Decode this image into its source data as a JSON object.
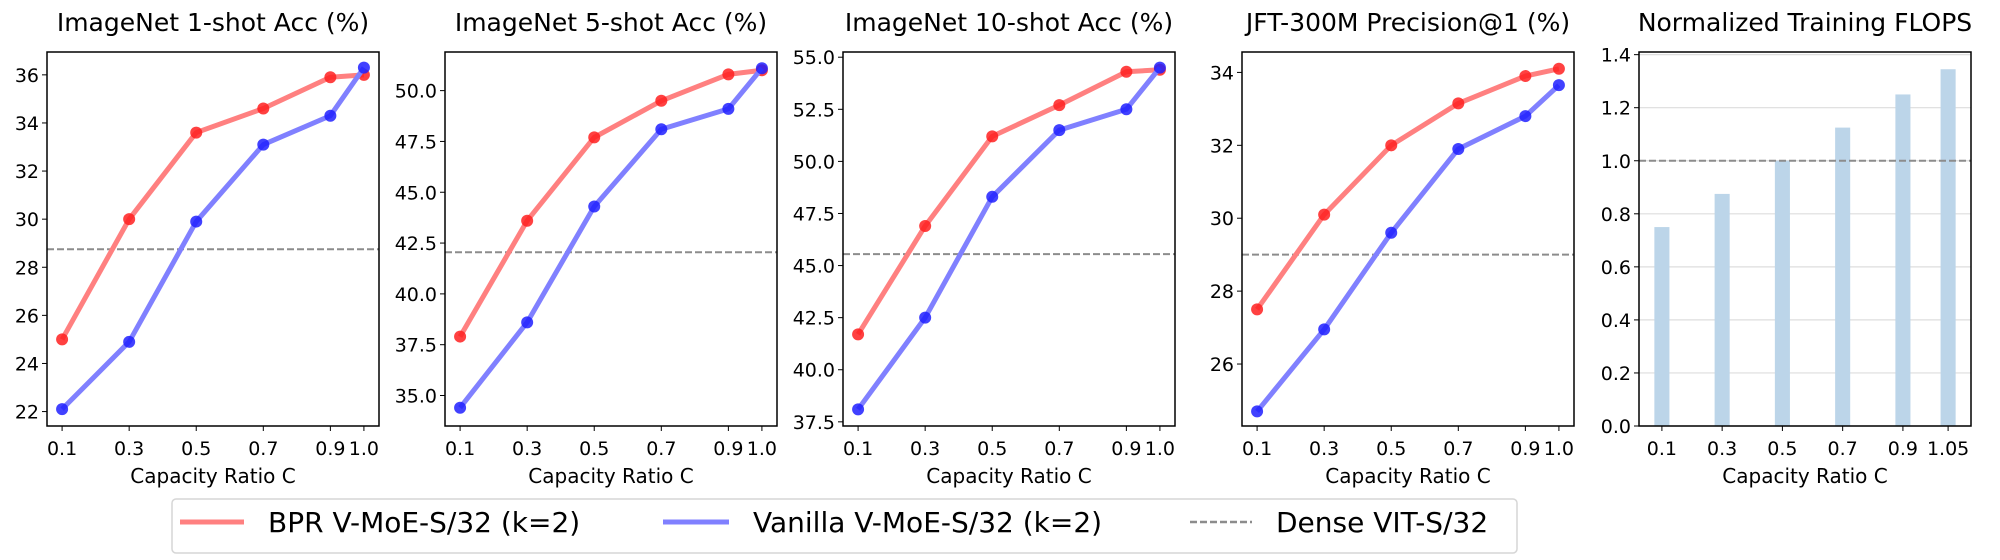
{
  "colors": {
    "bpr_line": "#ff8080",
    "bpr_marker": "#ff2020",
    "vanilla_line": "#8080ff",
    "vanilla_marker": "#2020ff",
    "dense": "#8c8c8c",
    "bar": "#bcd5e9",
    "grid": "#dddddd"
  },
  "legend": {
    "placement": "bottom-center",
    "entries": [
      {
        "label": "BPR V-MoE-S/32 (k=2)",
        "style": "solid",
        "color": "#ff8080"
      },
      {
        "label": "Vanilla V-MoE-S/32 (k=2)",
        "style": "solid",
        "color": "#8080ff"
      },
      {
        "label": "Dense VIT-S/32",
        "style": "dashed",
        "color": "#8c8c8c"
      }
    ]
  },
  "chart_data": [
    {
      "type": "line",
      "title": "ImageNet 1-shot Acc (%)",
      "xlabel": "Capacity Ratio C",
      "x": [
        0.1,
        0.3,
        0.5,
        0.7,
        0.9,
        1.0
      ],
      "xticks": [
        "0.1",
        "0.3",
        "0.5",
        "0.7",
        "0.9",
        "1.0"
      ],
      "ylim": [
        21.4,
        36.95
      ],
      "yticks": [
        "22",
        "24",
        "26",
        "28",
        "30",
        "32",
        "34",
        "36"
      ],
      "series": [
        {
          "name": "BPR V-MoE-S/32 (k=2)",
          "values": [
            25.0,
            30.0,
            33.6,
            34.6,
            35.9,
            36.0
          ]
        },
        {
          "name": "Vanilla V-MoE-S/32 (k=2)",
          "values": [
            22.1,
            24.9,
            29.9,
            33.1,
            34.3,
            36.3
          ]
        }
      ],
      "reference": {
        "name": "Dense VIT-S/32",
        "value": 28.75
      },
      "grid": false
    },
    {
      "type": "line",
      "title": "ImageNet 5-shot Acc (%)",
      "xlabel": "Capacity Ratio C",
      "x": [
        0.1,
        0.3,
        0.5,
        0.7,
        0.9,
        1.0
      ],
      "xticks": [
        "0.1",
        "0.3",
        "0.5",
        "0.7",
        "0.9",
        "1.0"
      ],
      "ylim": [
        33.5,
        51.9
      ],
      "yticks": [
        "35.0",
        "37.5",
        "40.0",
        "42.5",
        "45.0",
        "47.5",
        "50.0"
      ],
      "series": [
        {
          "name": "BPR V-MoE-S/32 (k=2)",
          "values": [
            37.9,
            43.6,
            47.7,
            49.5,
            50.8,
            51.0
          ]
        },
        {
          "name": "Vanilla V-MoE-S/32 (k=2)",
          "values": [
            34.4,
            38.6,
            44.3,
            48.1,
            49.1,
            51.1
          ]
        }
      ],
      "reference": {
        "name": "Dense VIT-S/32",
        "value": 42.05
      },
      "grid": false
    },
    {
      "type": "line",
      "title": "ImageNet 10-shot Acc (%)",
      "xlabel": "Capacity Ratio C",
      "x": [
        0.1,
        0.3,
        0.5,
        0.7,
        0.9,
        1.0
      ],
      "xticks": [
        "0.1",
        "0.3",
        "0.5",
        "0.7",
        "0.9",
        "1.0"
      ],
      "ylim": [
        37.3,
        55.25
      ],
      "yticks": [
        "37.5",
        "40.0",
        "42.5",
        "45.0",
        "47.5",
        "50.0",
        "52.5",
        "55.0"
      ],
      "series": [
        {
          "name": "BPR V-MoE-S/32 (k=2)",
          "values": [
            41.7,
            46.9,
            51.2,
            52.7,
            54.3,
            54.4
          ]
        },
        {
          "name": "Vanilla V-MoE-S/32 (k=2)",
          "values": [
            38.1,
            42.5,
            48.3,
            51.5,
            52.5,
            54.5
          ]
        }
      ],
      "reference": {
        "name": "Dense VIT-S/32",
        "value": 45.55
      },
      "grid": false
    },
    {
      "type": "line",
      "title": "JFT-300M Precision@1 (%)",
      "xlabel": "Capacity Ratio C",
      "x": [
        0.1,
        0.3,
        0.5,
        0.7,
        0.9,
        1.0
      ],
      "xticks": [
        "0.1",
        "0.3",
        "0.5",
        "0.7",
        "0.9",
        "1.0"
      ],
      "ylim": [
        24.3,
        34.56
      ],
      "yticks": [
        "26",
        "28",
        "30",
        "32",
        "34"
      ],
      "series": [
        {
          "name": "BPR V-MoE-S/32 (k=2)",
          "values": [
            27.5,
            30.1,
            32.0,
            33.15,
            33.9,
            34.1
          ]
        },
        {
          "name": "Vanilla V-MoE-S/32 (k=2)",
          "values": [
            24.7,
            26.95,
            29.6,
            31.9,
            32.8,
            33.65
          ]
        }
      ],
      "reference": {
        "name": "Dense VIT-S/32",
        "value": 29.0
      },
      "grid": false
    },
    {
      "type": "bar",
      "title": "Normalized Training FLOPS",
      "xlabel": "Capacity Ratio C",
      "x": [
        0.1,
        0.3,
        0.5,
        0.7,
        0.9,
        1.05
      ],
      "xticks": [
        "0.1",
        "0.3",
        "0.5",
        "0.7",
        "0.9",
        "1.05"
      ],
      "values": [
        0.75,
        0.875,
        1.0,
        1.125,
        1.25,
        1.345
      ],
      "ylim": [
        0,
        1.41
      ],
      "yticks": [
        "0.0",
        "0.2",
        "0.4",
        "0.6",
        "0.8",
        "1.0",
        "1.2",
        "1.4"
      ],
      "reference": {
        "name": "Dense VIT-S/32",
        "value": 1.0
      },
      "grid": true
    }
  ]
}
